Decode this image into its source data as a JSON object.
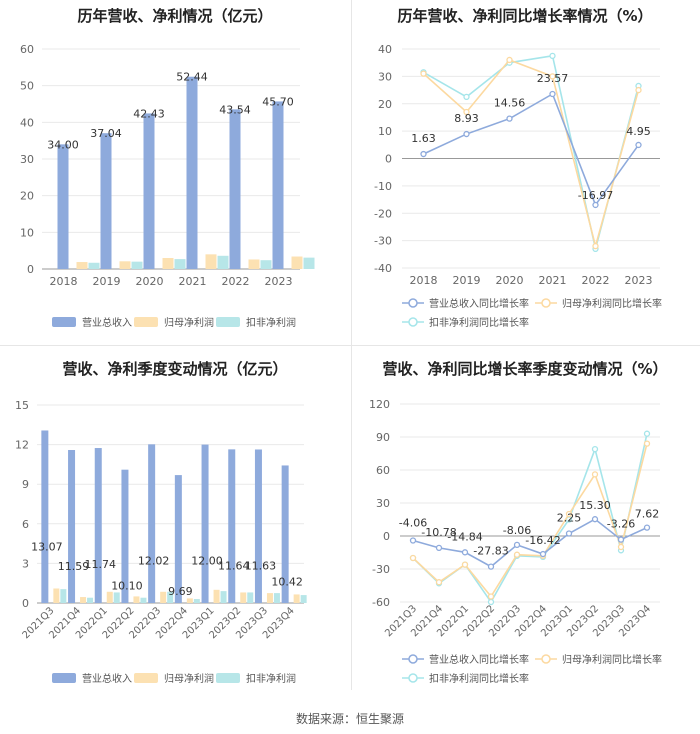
{
  "colors": {
    "revenue": "#8eaadc",
    "parent_profit": "#fce1b2",
    "deducted_profit": "#b7e6e8",
    "rev_growth_line": "#8eaadc",
    "parent_growth_line": "#fcd9a0",
    "deducted_growth_line": "#a5e5ea"
  },
  "footer": {
    "source": "数据来源：恒生聚源"
  },
  "chart_data": [
    {
      "id": "annual_amounts",
      "type": "bar",
      "title": "历年营收、净利情况（亿元）",
      "categories": [
        "2018",
        "2019",
        "2020",
        "2021",
        "2022",
        "2023"
      ],
      "ylim": [
        0,
        60
      ],
      "yticks": [
        "0",
        "10",
        "20",
        "30",
        "40",
        "50",
        "60"
      ],
      "series": [
        {
          "name": "营业总收入",
          "values": [
            34.0,
            37.04,
            42.43,
            52.44,
            43.54,
            45.7
          ],
          "labels": [
            "34.00",
            "37.04",
            "42.43",
            "52.44",
            "43.54",
            "45.70"
          ]
        },
        {
          "name": "归母净利润",
          "values": [
            1.9,
            2.1,
            3.0,
            4.0,
            2.6,
            3.4
          ]
        },
        {
          "name": "扣非净利润",
          "values": [
            1.7,
            2.0,
            2.7,
            3.6,
            2.4,
            3.1
          ]
        }
      ]
    },
    {
      "id": "annual_growth",
      "type": "line",
      "title": "历年营收、净利同比增长率情况（%）",
      "categories": [
        "2018",
        "2019",
        "2020",
        "2021",
        "2022",
        "2023"
      ],
      "ylim": [
        -40,
        40
      ],
      "yticks": [
        "40",
        "30",
        "20",
        "10",
        "0",
        "-10",
        "-20",
        "-30",
        "-40"
      ],
      "series": [
        {
          "name": "营业总收入同比增长率",
          "values": [
            1.63,
            8.93,
            14.56,
            23.57,
            -16.97,
            4.95
          ],
          "labels": [
            "1.63",
            "8.93",
            "14.56",
            "23.57",
            "-16.97",
            "4.95"
          ]
        },
        {
          "name": "归母净利润同比增长率",
          "values": [
            31,
            17,
            36,
            30,
            -32,
            25
          ]
        },
        {
          "name": "扣非净利润同比增长率",
          "values": [
            31.5,
            22.5,
            35,
            37.5,
            -33,
            26.5
          ]
        }
      ]
    },
    {
      "id": "quarterly_amounts",
      "type": "bar",
      "title": "营收、净利季度变动情况（亿元）",
      "categories": [
        "2021Q3",
        "2021Q4",
        "2022Q1",
        "2022Q2",
        "2022Q3",
        "2022Q4",
        "2023Q1",
        "2023Q2",
        "2023Q3",
        "2023Q4"
      ],
      "ylim": [
        0,
        15
      ],
      "yticks": [
        "0",
        "3",
        "6",
        "9",
        "12",
        "15"
      ],
      "series": [
        {
          "name": "营业总收入",
          "values": [
            13.07,
            11.59,
            11.74,
            10.1,
            12.02,
            9.69,
            12.0,
            11.64,
            11.63,
            10.42
          ],
          "labels": [
            "13.07",
            "11.59",
            "11.74",
            "10.10",
            "12.02",
            "9.69",
            "12.00",
            "11.64",
            "11.63",
            "10.42"
          ]
        },
        {
          "name": "归母净利润",
          "values": [
            1.1,
            0.45,
            0.85,
            0.5,
            0.85,
            0.35,
            1.0,
            0.8,
            0.75,
            0.65
          ]
        },
        {
          "name": "扣非净利润",
          "values": [
            1.05,
            0.4,
            0.8,
            0.4,
            0.85,
            0.3,
            0.9,
            0.8,
            0.75,
            0.6
          ]
        }
      ]
    },
    {
      "id": "quarterly_growth",
      "type": "line",
      "title": "营收、净利同比增长率季度变动情况（%）",
      "categories": [
        "2021Q3",
        "2021Q4",
        "2022Q1",
        "2022Q2",
        "2022Q3",
        "2022Q4",
        "2023Q1",
        "2023Q2",
        "2023Q3",
        "2023Q4"
      ],
      "ylim": [
        -60,
        120
      ],
      "yticks": [
        "120",
        "90",
        "60",
        "30",
        "0",
        "-30",
        "-60"
      ],
      "series": [
        {
          "name": "营业总收入同比增长率",
          "values": [
            -4.06,
            -10.78,
            -14.84,
            -27.83,
            -8.06,
            -16.42,
            2.25,
            15.3,
            -3.26,
            7.62
          ],
          "labels": [
            "-4.06",
            "-10.78",
            "-14.84",
            "-27.83",
            "-8.06",
            "-16.42",
            "2.25",
            "15.30",
            "-3.26",
            "7.62"
          ]
        },
        {
          "name": "归母净利润同比增长率",
          "values": [
            -20,
            -42,
            -26,
            -55,
            -17,
            -18,
            20,
            56,
            -10,
            84
          ]
        },
        {
          "name": "扣非净利润同比增长率",
          "values": [
            -20,
            -43,
            -26,
            -60,
            -18,
            -19,
            15,
            79,
            -13,
            93
          ]
        }
      ]
    }
  ]
}
